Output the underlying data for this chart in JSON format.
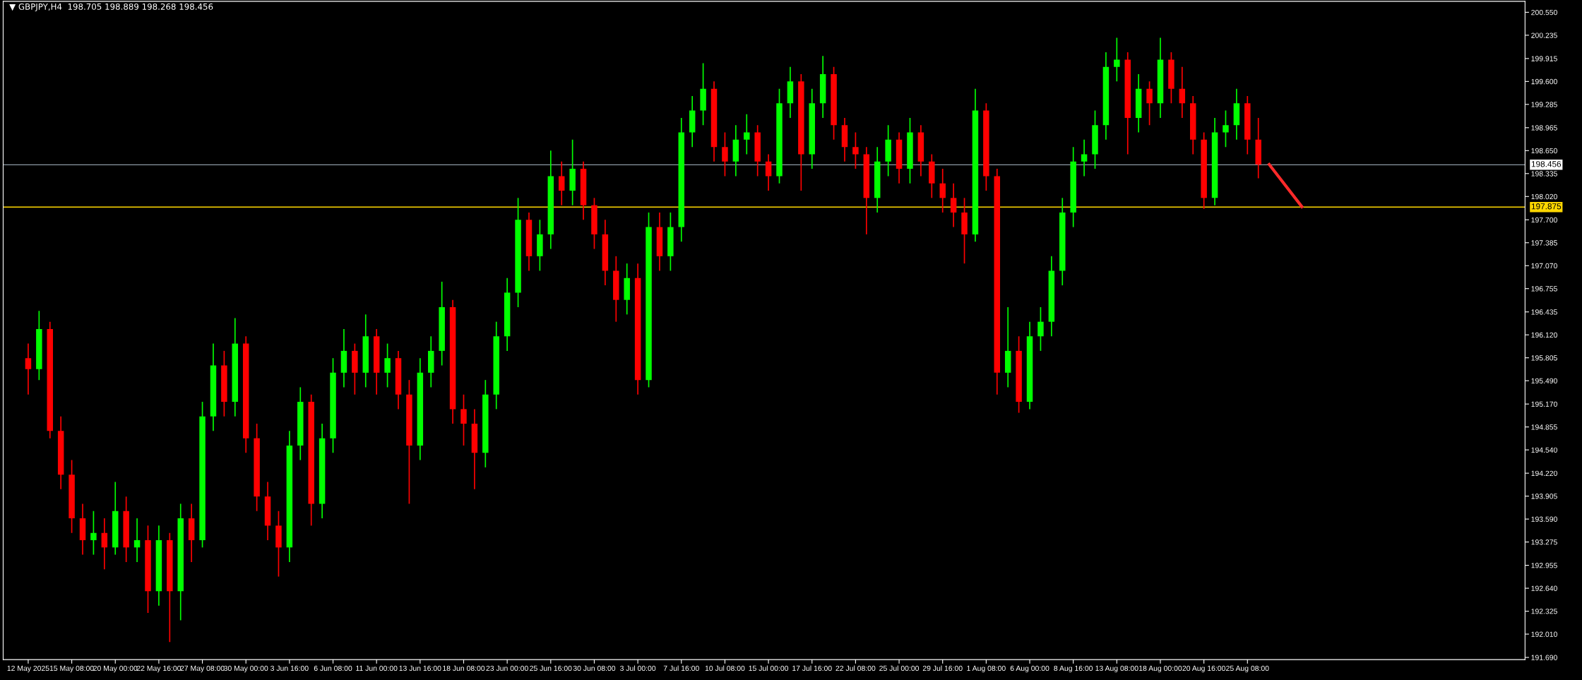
{
  "chart_data": {
    "type": "candlestick",
    "title": "▼ GBPJPY,H4  198.705 198.889 198.268 198.456",
    "categories": [
      "12 May 2025",
      null,
      null,
      null,
      "15 May 08:00",
      null,
      null,
      null,
      "20 May 00:00",
      null,
      null,
      null,
      "22 May 16:00",
      null,
      null,
      null,
      "27 May 08:00",
      null,
      null,
      null,
      "30 May 00:00",
      null,
      null,
      null,
      "3 Jun 16:00",
      null,
      null,
      null,
      "6 Jun 08:00",
      null,
      null,
      null,
      "11 Jun 00:00",
      null,
      null,
      null,
      "13 Jun 16:00",
      null,
      null,
      null,
      "18 Jun 08:00",
      null,
      null,
      null,
      "23 Jun 00:00",
      null,
      null,
      null,
      "25 Jun 16:00",
      null,
      null,
      null,
      "30 Jun 08:00",
      null,
      null,
      null,
      "3 Jul 00:00",
      null,
      null,
      null,
      "7 Jul 16:00",
      null,
      null,
      null,
      "10 Jul 08:00",
      null,
      null,
      null,
      "15 Jul 00:00",
      null,
      null,
      null,
      "17 Jul 16:00",
      null,
      null,
      null,
      "22 Jul 08:00",
      null,
      null,
      null,
      "25 Jul 00:00",
      null,
      null,
      null,
      "29 Jul 16:00",
      null,
      null,
      null,
      "1 Aug 08:00",
      null,
      null,
      null,
      "6 Aug 00:00",
      null,
      null,
      null,
      "8 Aug 16:00",
      null,
      null,
      null,
      "13 Aug 08:00",
      null,
      null,
      null,
      "18 Aug 00:00",
      null,
      null,
      null,
      "20 Aug 16:00",
      null,
      null,
      null,
      "25 Aug 08:00",
      null,
      null,
      null,
      null,
      null,
      null,
      null,
      null,
      null,
      null,
      null,
      null,
      null,
      null,
      null,
      null,
      null,
      null,
      null,
      null,
      null,
      null,
      null,
      null,
      null
    ],
    "ohlc": [
      [
        195.8,
        196.0,
        195.3,
        195.65
      ],
      [
        195.65,
        196.45,
        195.5,
        196.2
      ],
      [
        196.2,
        196.3,
        194.7,
        194.8
      ],
      [
        194.8,
        195.0,
        194.0,
        194.2
      ],
      [
        194.2,
        194.4,
        193.4,
        193.6
      ],
      [
        193.6,
        193.8,
        193.1,
        193.3
      ],
      [
        193.3,
        193.7,
        193.1,
        193.4
      ],
      [
        193.4,
        193.6,
        192.9,
        193.2
      ],
      [
        193.2,
        194.1,
        193.1,
        193.7
      ],
      [
        193.7,
        193.9,
        193.0,
        193.2
      ],
      [
        193.2,
        193.6,
        193.0,
        193.3
      ],
      [
        193.3,
        193.5,
        192.3,
        192.6
      ],
      [
        192.6,
        193.5,
        192.4,
        193.3
      ],
      [
        193.3,
        193.4,
        191.9,
        192.6
      ],
      [
        192.6,
        193.8,
        192.2,
        193.6
      ],
      [
        193.6,
        193.8,
        193.0,
        193.3
      ],
      [
        193.3,
        195.2,
        193.2,
        195.0
      ],
      [
        195.0,
        196.0,
        194.8,
        195.7
      ],
      [
        195.7,
        195.9,
        195.0,
        195.2
      ],
      [
        195.2,
        196.35,
        195.0,
        196.0
      ],
      [
        196.0,
        196.1,
        194.5,
        194.7
      ],
      [
        194.7,
        194.9,
        193.7,
        193.9
      ],
      [
        193.9,
        194.1,
        193.3,
        193.5
      ],
      [
        193.5,
        193.7,
        192.8,
        193.2
      ],
      [
        193.2,
        194.8,
        193.0,
        194.6
      ],
      [
        194.6,
        195.4,
        194.4,
        195.2
      ],
      [
        195.2,
        195.3,
        193.5,
        193.8
      ],
      [
        193.8,
        194.9,
        193.6,
        194.7
      ],
      [
        194.7,
        195.8,
        194.5,
        195.6
      ],
      [
        195.6,
        196.2,
        195.4,
        195.9
      ],
      [
        195.9,
        196.0,
        195.3,
        195.6
      ],
      [
        195.6,
        196.4,
        195.4,
        196.1
      ],
      [
        196.1,
        196.2,
        195.3,
        195.6
      ],
      [
        195.6,
        196.0,
        195.4,
        195.8
      ],
      [
        195.8,
        195.9,
        195.1,
        195.3
      ],
      [
        195.3,
        195.5,
        193.8,
        194.6
      ],
      [
        194.6,
        195.8,
        194.4,
        195.6
      ],
      [
        195.6,
        196.1,
        195.4,
        195.9
      ],
      [
        195.9,
        196.85,
        195.7,
        196.5
      ],
      [
        196.5,
        196.6,
        194.9,
        195.1
      ],
      [
        195.1,
        195.3,
        194.6,
        194.9
      ],
      [
        194.9,
        195.1,
        194.0,
        194.5
      ],
      [
        194.5,
        195.5,
        194.3,
        195.3
      ],
      [
        195.3,
        196.3,
        195.1,
        196.1
      ],
      [
        196.1,
        196.9,
        195.9,
        196.7
      ],
      [
        196.7,
        198.0,
        196.5,
        197.7
      ],
      [
        197.7,
        197.8,
        197.0,
        197.2
      ],
      [
        197.2,
        197.7,
        197.0,
        197.5
      ],
      [
        197.5,
        198.65,
        197.3,
        198.3
      ],
      [
        198.3,
        198.5,
        197.9,
        198.1
      ],
      [
        198.1,
        198.8,
        197.9,
        198.4
      ],
      [
        198.4,
        198.5,
        197.7,
        197.9
      ],
      [
        197.9,
        198.0,
        197.3,
        197.5
      ],
      [
        197.5,
        197.7,
        196.8,
        197.0
      ],
      [
        197.0,
        197.2,
        196.3,
        196.6
      ],
      [
        196.6,
        197.1,
        196.4,
        196.9
      ],
      [
        196.9,
        197.1,
        195.3,
        195.5
      ],
      [
        195.5,
        197.8,
        195.4,
        197.6
      ],
      [
        197.6,
        197.8,
        197.0,
        197.2
      ],
      [
        197.2,
        197.8,
        197.0,
        197.6
      ],
      [
        197.6,
        199.1,
        197.4,
        198.9
      ],
      [
        198.9,
        199.4,
        198.7,
        199.2
      ],
      [
        199.2,
        199.85,
        199.0,
        199.5
      ],
      [
        199.5,
        199.6,
        198.5,
        198.7
      ],
      [
        198.7,
        198.9,
        198.3,
        198.5
      ],
      [
        198.5,
        199.0,
        198.3,
        198.8
      ],
      [
        198.8,
        199.15,
        198.6,
        198.9
      ],
      [
        198.9,
        199.0,
        198.3,
        198.5
      ],
      [
        198.5,
        198.6,
        198.1,
        198.3
      ],
      [
        198.3,
        199.5,
        198.2,
        199.3
      ],
      [
        199.3,
        199.8,
        199.1,
        199.6
      ],
      [
        199.6,
        199.7,
        198.1,
        198.6
      ],
      [
        198.6,
        199.5,
        198.4,
        199.3
      ],
      [
        199.3,
        199.95,
        199.1,
        199.7
      ],
      [
        199.7,
        199.8,
        198.8,
        199.0
      ],
      [
        199.0,
        199.1,
        198.5,
        198.7
      ],
      [
        198.7,
        198.9,
        198.4,
        198.6
      ],
      [
        198.6,
        198.7,
        197.5,
        198.0
      ],
      [
        198.0,
        198.7,
        197.8,
        198.5
      ],
      [
        198.5,
        199.0,
        198.3,
        198.8
      ],
      [
        198.8,
        198.9,
        198.2,
        198.4
      ],
      [
        198.4,
        199.1,
        198.2,
        198.9
      ],
      [
        198.9,
        199.0,
        198.3,
        198.5
      ],
      [
        198.5,
        198.6,
        198.0,
        198.2
      ],
      [
        198.2,
        198.4,
        197.8,
        198.0
      ],
      [
        198.0,
        198.2,
        197.6,
        197.8
      ],
      [
        197.8,
        198.0,
        197.1,
        197.5
      ],
      [
        197.5,
        199.5,
        197.4,
        199.2
      ],
      [
        199.2,
        199.3,
        198.1,
        198.3
      ],
      [
        198.3,
        198.4,
        195.3,
        195.6
      ],
      [
        195.6,
        196.5,
        195.4,
        195.9
      ],
      [
        195.9,
        196.1,
        195.05,
        195.2
      ],
      [
        195.2,
        196.3,
        195.1,
        196.1
      ],
      [
        196.1,
        196.5,
        195.9,
        196.3
      ],
      [
        196.3,
        197.2,
        196.1,
        197.0
      ],
      [
        197.0,
        198.0,
        196.8,
        197.8
      ],
      [
        197.8,
        198.7,
        197.6,
        198.5
      ],
      [
        198.5,
        198.8,
        198.3,
        198.6
      ],
      [
        198.6,
        199.2,
        198.4,
        199.0
      ],
      [
        199.0,
        200.0,
        198.8,
        199.8
      ],
      [
        199.8,
        200.2,
        199.6,
        199.9
      ],
      [
        199.9,
        200.0,
        198.6,
        199.1
      ],
      [
        199.1,
        199.7,
        198.9,
        199.5
      ],
      [
        199.5,
        199.6,
        199.0,
        199.3
      ],
      [
        199.3,
        200.2,
        199.1,
        199.9
      ],
      [
        199.9,
        200.0,
        199.3,
        199.5
      ],
      [
        199.5,
        199.8,
        199.1,
        199.3
      ],
      [
        199.3,
        199.4,
        198.6,
        198.8
      ],
      [
        198.8,
        198.9,
        197.85,
        198.0
      ],
      [
        198.0,
        199.1,
        197.9,
        198.9
      ],
      [
        198.9,
        199.2,
        198.7,
        199.0
      ],
      [
        199.0,
        199.5,
        198.8,
        199.3
      ],
      [
        199.3,
        199.4,
        198.6,
        198.8
      ],
      [
        198.8,
        199.1,
        198.27,
        198.46
      ],
      null,
      null,
      null,
      null,
      null,
      null,
      null,
      null,
      null,
      null,
      null,
      null,
      null,
      null,
      null,
      null,
      null,
      null,
      null,
      null,
      null,
      null,
      null,
      null
    ],
    "colors": [
      "#ff0000",
      "#00ff00",
      "#ff0000",
      "#ff0000",
      "#ff0000",
      "#ff0000",
      "#00ff00",
      "#ff0000",
      "#00ff00",
      "#ff0000",
      "#00ff00",
      "#ff0000",
      "#00ff00",
      "#ff0000",
      "#00ff00",
      "#ff0000",
      "#00ff00",
      "#00ff00",
      "#ff0000",
      "#00ff00",
      "#ff0000",
      "#ff0000",
      "#ff0000",
      "#ff0000",
      "#00ff00",
      "#00ff00",
      "#ff0000",
      "#00ff00",
      "#00ff00",
      "#00ff00",
      "#ff0000",
      "#00ff00",
      "#ff0000",
      "#00ff00",
      "#ff0000",
      "#ff0000",
      "#00ff00",
      "#00ff00",
      "#00ff00",
      "#ff0000",
      "#ff0000",
      "#ff0000",
      "#00ff00",
      "#00ff00",
      "#00ff00",
      "#00ff00",
      "#ff0000",
      "#00ff00",
      "#00ff00",
      "#ff0000",
      "#00ff00",
      "#ff0000",
      "#ff0000",
      "#ff0000",
      "#ff0000",
      "#00ff00",
      "#ff0000",
      "#00ff00",
      "#ff0000",
      "#00ff00",
      "#00ff00",
      "#00ff00",
      "#00ff00",
      "#ff0000",
      "#ff0000",
      "#00ff00",
      "#00ff00",
      "#ff0000",
      "#ff0000",
      "#00ff00",
      "#00ff00",
      "#ff0000",
      "#00ff00",
      "#00ff00",
      "#ff0000",
      "#ff0000",
      "#ff0000",
      "#ff0000",
      "#00ff00",
      "#00ff00",
      "#ff0000",
      "#00ff00",
      "#ff0000",
      "#ff0000",
      "#ff0000",
      "#ff0000",
      "#ff0000",
      "#00ff00",
      "#ff0000",
      "#ff0000",
      "#00ff00",
      "#ff0000",
      "#00ff00",
      "#00ff00",
      "#00ff00",
      "#00ff00",
      "#00ff00",
      "#00ff00",
      "#00ff00",
      "#00ff00",
      "#00ff00",
      "#ff0000",
      "#00ff00",
      "#ff0000",
      "#00ff00",
      "#ff0000",
      "#ff0000",
      "#ff0000",
      "#ff0000",
      "#00ff00",
      "#00ff00",
      "#00ff00",
      "#ff0000",
      "#ff0000",
      null,
      null,
      null,
      null,
      null,
      null,
      null,
      null,
      null,
      null,
      null,
      null,
      null,
      null,
      null,
      null,
      null,
      null,
      null,
      null,
      null,
      null,
      null,
      null
    ],
    "series": [
      {
        "type": "line",
        "color": "#ff2a2a",
        "values": [
          null,
          null,
          null,
          null,
          null,
          null,
          null,
          null,
          null,
          null,
          null,
          null,
          null,
          null,
          null,
          null,
          null,
          null,
          null,
          null,
          null,
          null,
          null,
          null,
          null,
          null,
          null,
          null,
          null,
          null,
          null,
          null,
          null,
          null,
          null,
          null,
          null,
          null,
          null,
          null,
          null,
          null,
          null,
          null,
          null,
          null,
          null,
          null,
          null,
          null,
          null,
          null,
          null,
          null,
          null,
          null,
          null,
          null,
          null,
          null,
          null,
          null,
          null,
          null,
          null,
          null,
          null,
          null,
          null,
          null,
          null,
          null,
          null,
          null,
          null,
          null,
          null,
          null,
          null,
          null,
          null,
          null,
          null,
          null,
          null,
          null,
          null,
          null,
          null,
          null,
          null,
          null,
          null,
          null,
          null,
          null,
          null,
          null,
          null,
          null,
          null,
          null,
          null,
          null,
          null,
          null,
          null,
          null,
          null,
          null,
          null,
          null,
          null,
          null,
          198.46,
          null,
          null,
          197.88,
          null,
          null,
          null,
          null,
          null,
          null,
          null,
          null,
          null,
          null,
          null,
          null,
          null,
          null,
          null,
          null,
          null,
          null,
          null,
          null
        ]
      }
    ],
    "ylim": [
      191.66,
      200.7
    ],
    "yticks": [
      {
        "value": 191.69,
        "label": "191.690"
      },
      {
        "value": 192.01,
        "label": "192.010"
      },
      {
        "value": 192.325,
        "label": "192.325"
      },
      {
        "value": 192.64,
        "label": "192.640"
      },
      {
        "value": 192.955,
        "label": "192.955"
      },
      {
        "value": 193.275,
        "label": "193.275"
      },
      {
        "value": 193.59,
        "label": "193.590"
      },
      {
        "value": 193.905,
        "label": "193.905"
      },
      {
        "value": 194.22,
        "label": "194.220"
      },
      {
        "value": 194.54,
        "label": "194.540"
      },
      {
        "value": 194.855,
        "label": "194.855"
      },
      {
        "value": 195.17,
        "label": "195.170"
      },
      {
        "value": 195.49,
        "label": "195.490"
      },
      {
        "value": 195.805,
        "label": "195.805"
      },
      {
        "value": 196.12,
        "label": "196.120"
      },
      {
        "value": 196.435,
        "label": "196.435"
      },
      {
        "value": 196.755,
        "label": "196.755"
      },
      {
        "value": 197.07,
        "label": "197.070"
      },
      {
        "value": 197.385,
        "label": "197.385"
      },
      {
        "value": 197.7,
        "label": "197.700"
      },
      {
        "value": 198.02,
        "label": "198.020"
      },
      {
        "value": 198.335,
        "label": "198.335"
      },
      {
        "value": 198.65,
        "label": "198.650"
      },
      {
        "value": 198.965,
        "label": "198.965"
      },
      {
        "value": 199.285,
        "label": "199.285"
      },
      {
        "value": 199.6,
        "label": "199.600"
      },
      {
        "value": 199.915,
        "label": "199.915"
      },
      {
        "value": 200.235,
        "label": "200.235"
      },
      {
        "value": 200.55,
        "label": "200.550"
      }
    ],
    "ref_lines": [
      {
        "axis": "y",
        "value": 198.456,
        "label": "198.456",
        "color": "#8c98a4"
      },
      {
        "axis": "y",
        "value": 197.875,
        "label": "197.875",
        "color": "#ffd700"
      }
    ],
    "grid": false
  }
}
